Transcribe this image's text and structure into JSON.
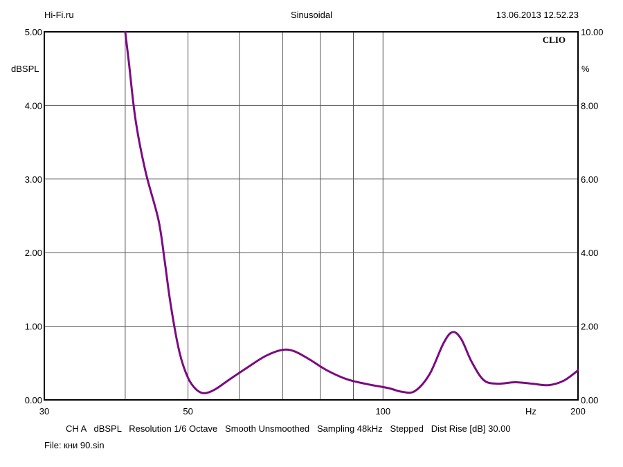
{
  "header": {
    "site": "Hi-Fi.ru",
    "mode": "Sinusoidal",
    "datetime": "13.06.2013 12.52.23"
  },
  "brand": "CLIO",
  "footer": {
    "info": "CH A   dBSPL   Resolution 1/6 Octave   Smooth Unsmoothed   Sampling 48kHz   Stepped   Dist Rise [dB] 30.00",
    "file": "File: кни 90.sin"
  },
  "chart_data": {
    "type": "line",
    "xscale": "log",
    "xlim": [
      30,
      200
    ],
    "ylim_left": [
      0,
      5
    ],
    "ylim_right": [
      0,
      10
    ],
    "ylabel_left": "dBSPL",
    "ylabel_right": "%",
    "xlabel": "Hz",
    "grid": true,
    "x_tick_labels": [
      {
        "value": 30,
        "label": "30"
      },
      {
        "value": 50,
        "label": "50"
      },
      {
        "value": 100,
        "label": "100"
      },
      {
        "value": 200,
        "label": "200"
      }
    ],
    "x_grid": [
      40,
      50,
      60,
      70,
      80,
      90,
      100
    ],
    "y_left_ticks": [
      "0.00",
      "1.00",
      "2.00",
      "3.00",
      "4.00",
      "5.00"
    ],
    "y_right_ticks": [
      "0.00",
      "2.00",
      "4.00",
      "6.00",
      "8.00",
      "10.00"
    ],
    "line_color": "#7b0a82",
    "series": [
      {
        "points": [
          [
            40.0,
            5.0
          ],
          [
            40.5,
            4.6
          ],
          [
            41.5,
            3.8
          ],
          [
            43.0,
            3.1
          ],
          [
            45.0,
            2.45
          ],
          [
            46.0,
            1.9
          ],
          [
            47.0,
            1.3
          ],
          [
            48.5,
            0.65
          ],
          [
            50.0,
            0.3
          ],
          [
            51.5,
            0.14
          ],
          [
            53.0,
            0.09
          ],
          [
            55.0,
            0.14
          ],
          [
            58.0,
            0.28
          ],
          [
            62.0,
            0.45
          ],
          [
            66.0,
            0.6
          ],
          [
            70.0,
            0.68
          ],
          [
            73.0,
            0.66
          ],
          [
            77.0,
            0.55
          ],
          [
            82.0,
            0.4
          ],
          [
            88.0,
            0.28
          ],
          [
            95.0,
            0.21
          ],
          [
            102.0,
            0.16
          ],
          [
            107.0,
            0.11
          ],
          [
            112.0,
            0.12
          ],
          [
            118.0,
            0.35
          ],
          [
            124.0,
            0.77
          ],
          [
            128.0,
            0.92
          ],
          [
            132.0,
            0.83
          ],
          [
            137.0,
            0.52
          ],
          [
            143.0,
            0.27
          ],
          [
            150.0,
            0.22
          ],
          [
            160.0,
            0.24
          ],
          [
            170.0,
            0.22
          ],
          [
            180.0,
            0.2
          ],
          [
            190.0,
            0.26
          ],
          [
            200.0,
            0.4
          ]
        ]
      }
    ]
  }
}
